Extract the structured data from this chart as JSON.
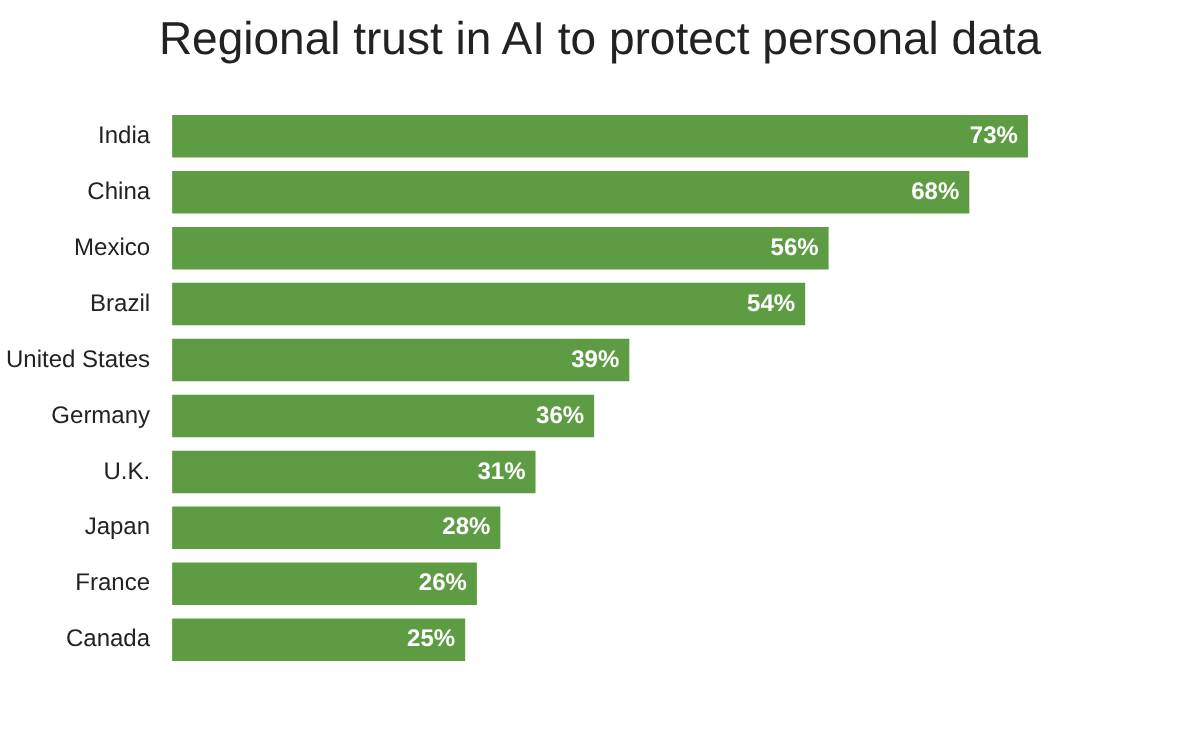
{
  "chart_data": {
    "type": "bar",
    "orientation": "horizontal",
    "title": "Regional trust in AI to protect personal data",
    "categories": [
      "India",
      "China",
      "Mexico",
      "Brazil",
      "United States",
      "Germany",
      "U.K.",
      "Japan",
      "France",
      "Canada"
    ],
    "values": [
      73,
      68,
      56,
      54,
      39,
      36,
      31,
      28,
      26,
      25
    ],
    "value_labels": [
      "73%",
      "68%",
      "56%",
      "54%",
      "39%",
      "36%",
      "31%",
      "28%",
      "26%",
      "25%"
    ],
    "color": "#5e9c44",
    "legend": false
  }
}
